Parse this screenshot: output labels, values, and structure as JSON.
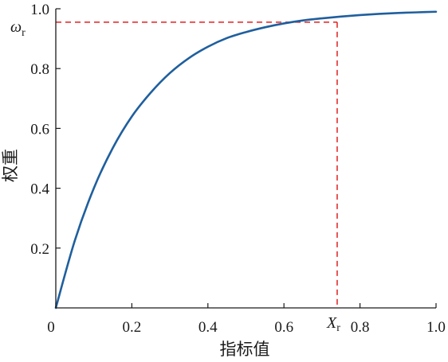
{
  "chart_data": {
    "type": "line",
    "title": "",
    "xlabel": "指标值",
    "ylabel": "权重",
    "xlim": [
      0,
      1.0
    ],
    "ylim": [
      0,
      1.0
    ],
    "grid": false,
    "x_ticks": [
      "0",
      "0.2",
      "0.4",
      "0.6",
      "0.8",
      "1.0"
    ],
    "y_ticks": [
      "0.2",
      "0.4",
      "0.6",
      "0.8",
      "1.0"
    ],
    "series": [
      {
        "color": "#1f5f9e",
        "x": [
          0,
          0.05,
          0.1,
          0.15,
          0.2,
          0.25,
          0.3,
          0.35,
          0.4,
          0.45,
          0.5,
          0.55,
          0.6,
          0.65,
          0.7,
          0.75,
          0.8,
          0.85,
          0.9,
          0.95,
          1.0
        ],
        "y": [
          0,
          0.225,
          0.4,
          0.535,
          0.64,
          0.72,
          0.785,
          0.835,
          0.873,
          0.902,
          0.922,
          0.938,
          0.951,
          0.961,
          0.968,
          0.974,
          0.979,
          0.983,
          0.986,
          0.988,
          0.99
        ]
      }
    ],
    "annotations": {
      "color": "#e02020",
      "x_value": 0.74,
      "y_value": 0.955,
      "x_label_main": "X",
      "x_label_sub": "r",
      "y_label_main": "ω",
      "y_label_sub": "r"
    }
  }
}
